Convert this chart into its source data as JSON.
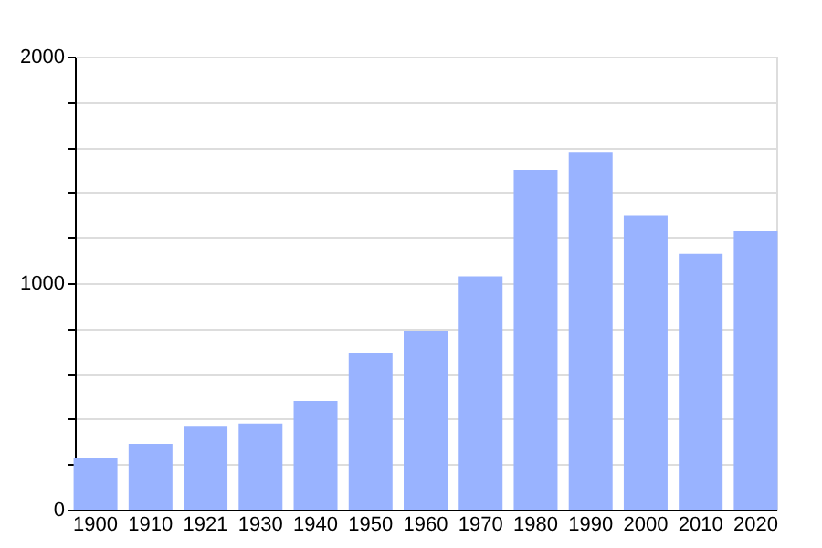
{
  "chart_data": {
    "type": "bar",
    "categories": [
      "1900",
      "1910",
      "1921",
      "1930",
      "1940",
      "1950",
      "1960",
      "1970",
      "1980",
      "1990",
      "2000",
      "2010",
      "2020"
    ],
    "values": [
      230,
      290,
      370,
      380,
      480,
      690,
      790,
      1030,
      1500,
      1580,
      1300,
      1130,
      1230
    ],
    "color": "#99b3ff",
    "ylim": [
      0,
      2000
    ],
    "yticks": [
      0,
      {
        "value": 200,
        "label": null
      },
      {
        "value": 400,
        "label": null
      },
      {
        "value": 600,
        "label": null
      },
      {
        "value": 800,
        "label": null
      },
      1000,
      {
        "value": 1200,
        "label": null
      },
      {
        "value": 1400,
        "label": null
      },
      {
        "value": 1600,
        "label": null
      },
      {
        "value": 1800,
        "label": null
      },
      2000
    ],
    "grid": "y"
  }
}
